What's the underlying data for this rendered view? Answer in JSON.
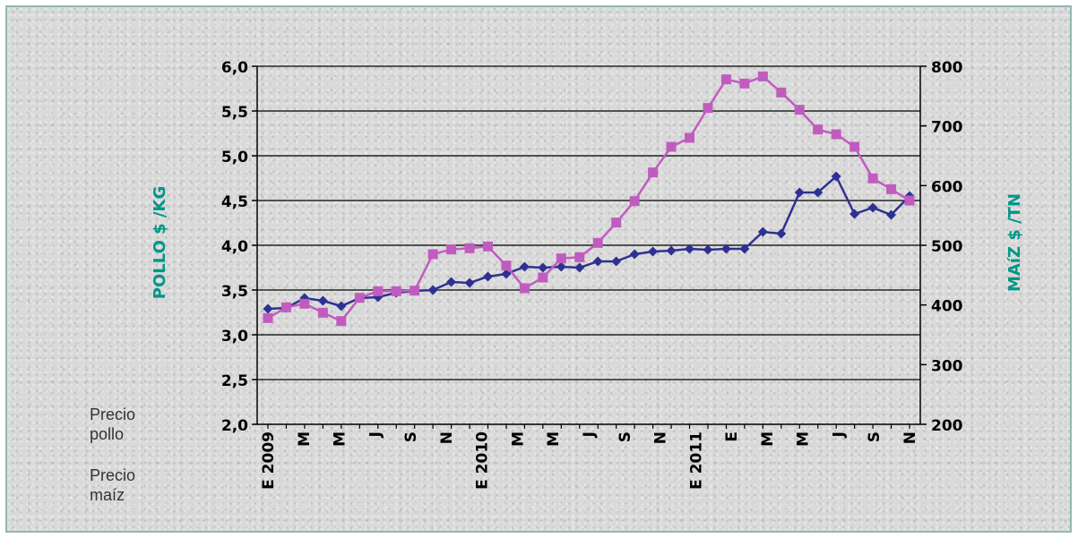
{
  "chart_data": {
    "type": "line",
    "y_left": {
      "label": "POLLO $ /KG",
      "ticks": [
        "2,0",
        "2,5",
        "3,0",
        "3,5",
        "4,0",
        "4,5",
        "5,0",
        "5,5",
        "6,0"
      ],
      "min": 2.0,
      "max": 6.0
    },
    "y_right": {
      "label": "MAíZ $ /TN",
      "ticks": [
        "200",
        "300",
        "400",
        "500",
        "600",
        "700",
        "800"
      ],
      "min": 200,
      "max": 800
    },
    "x_tick_labels": [
      "E 2009",
      "M",
      "M",
      "J",
      "S",
      "N",
      "E 2010",
      "M",
      "M",
      "J",
      "S",
      "N",
      "E 2011",
      "E",
      "M",
      "M",
      "J",
      "S",
      "N"
    ],
    "series": [
      {
        "name": "Precio pollo",
        "axis": "left",
        "color": "#2e3192",
        "marker": "diamond",
        "values": [
          3.29,
          3.3,
          3.41,
          3.38,
          3.32,
          3.41,
          3.42,
          3.47,
          3.49,
          3.5,
          3.59,
          3.58,
          3.65,
          3.68,
          3.76,
          3.75,
          3.76,
          3.75,
          3.82,
          3.82,
          3.9,
          3.93,
          3.94,
          3.96,
          3.95,
          3.96,
          3.96,
          4.15,
          4.13,
          4.59,
          4.59,
          4.77,
          4.35,
          4.42,
          4.34,
          4.55
        ]
      },
      {
        "name": "Precio maíz",
        "axis": "right",
        "color": "#c05cc0",
        "marker": "square",
        "values": [
          378,
          396,
          402,
          387,
          373,
          412,
          423,
          423,
          424,
          485,
          493,
          495,
          498,
          466,
          428,
          446,
          478,
          480,
          504,
          538,
          574,
          622,
          665,
          680,
          730,
          778,
          771,
          783,
          756,
          727,
          694,
          686,
          665,
          612,
          594,
          575
        ]
      }
    ],
    "legend": [
      "Precio pollo",
      "Precio maíz"
    ],
    "grid": true
  }
}
